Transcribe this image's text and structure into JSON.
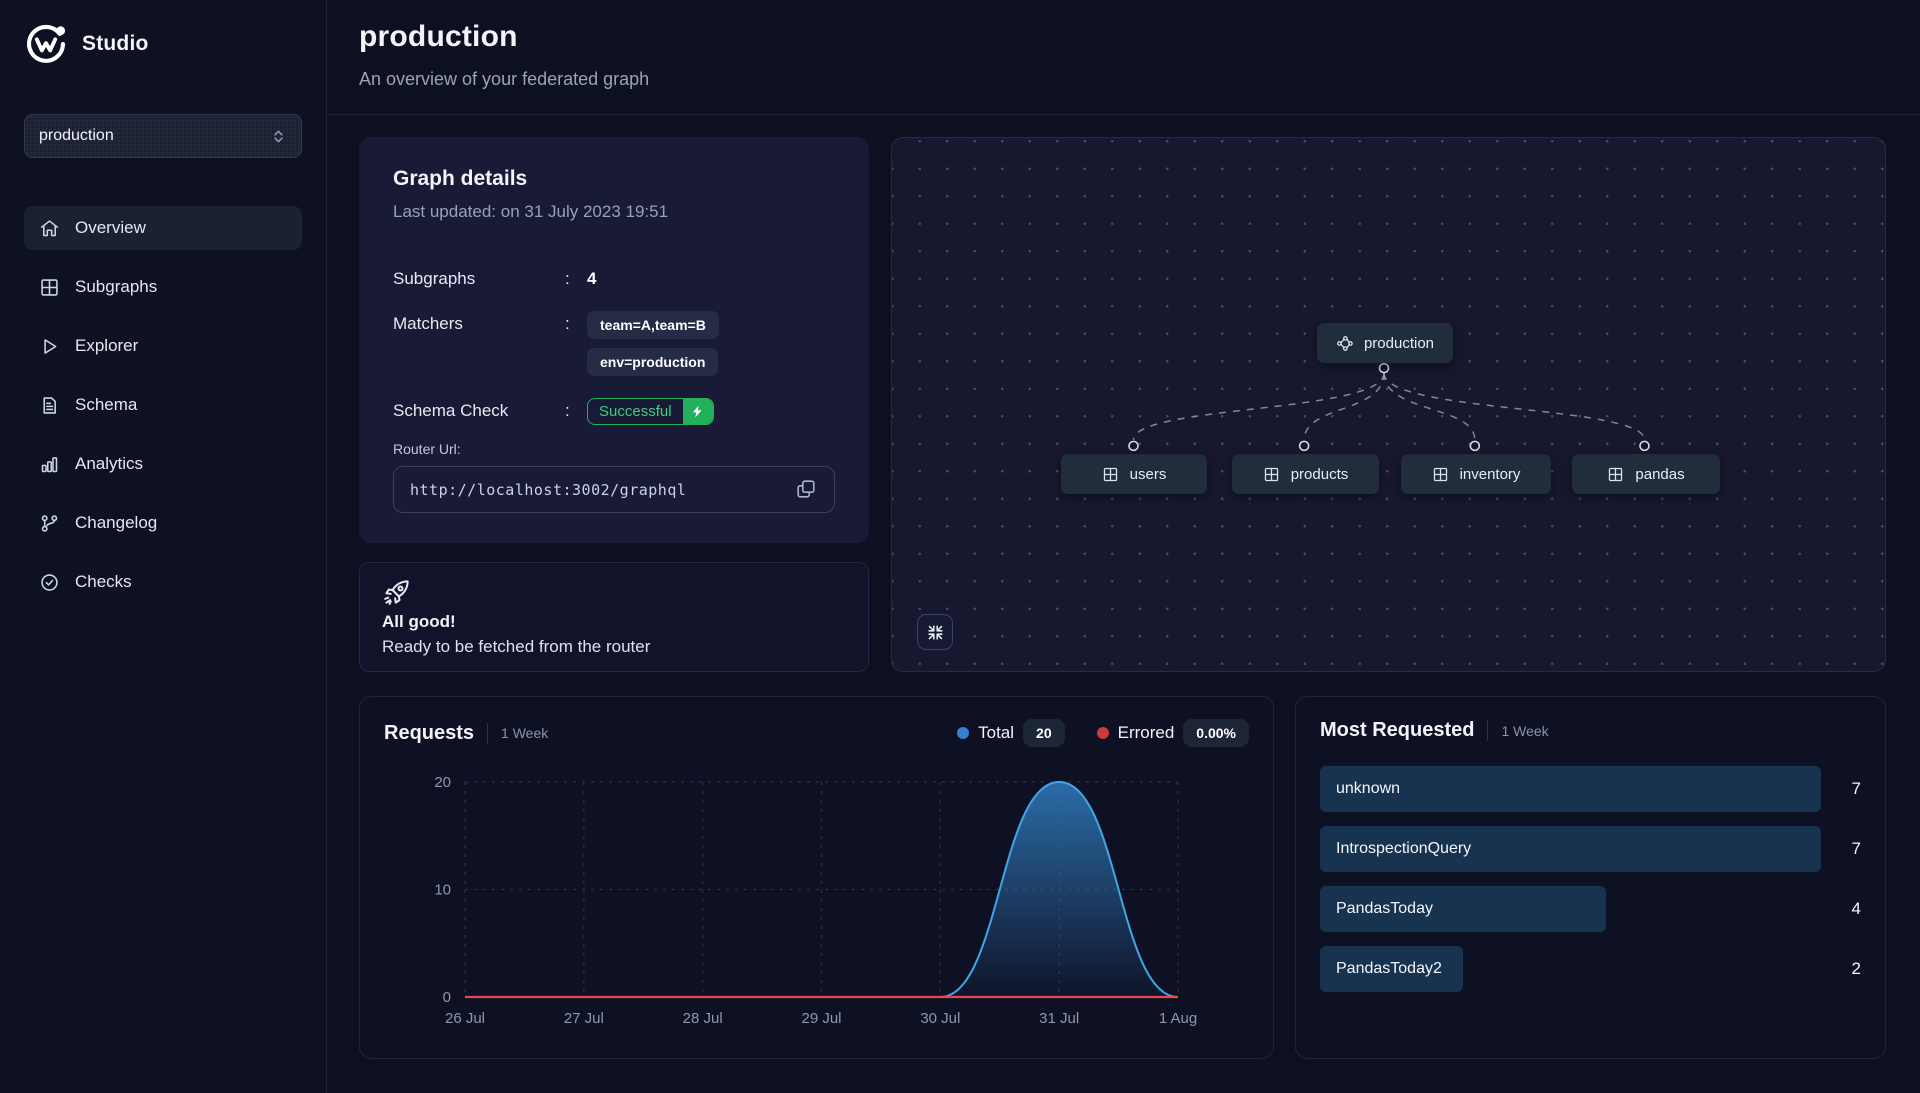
{
  "brand": {
    "name": "Studio",
    "logo_icon": "wundergraph-logo"
  },
  "sidebar": {
    "graph_select": {
      "value": "production",
      "icon": "chevron-up-down-icon"
    },
    "items": [
      {
        "label": "Overview",
        "icon": "home-icon",
        "active": true
      },
      {
        "label": "Subgraphs",
        "icon": "grid-icon",
        "active": false
      },
      {
        "label": "Explorer",
        "icon": "play-icon",
        "active": false
      },
      {
        "label": "Schema",
        "icon": "document-icon",
        "active": false
      },
      {
        "label": "Analytics",
        "icon": "bar-chart-icon",
        "active": false
      },
      {
        "label": "Changelog",
        "icon": "git-branch-icon",
        "active": false
      },
      {
        "label": "Checks",
        "icon": "check-circle-icon",
        "active": false
      }
    ]
  },
  "header": {
    "title": "production",
    "subtitle": "An overview of your federated graph"
  },
  "graph_details": {
    "title": "Graph details",
    "last_updated": "Last updated: on 31 July 2023 19:51",
    "fields": {
      "subgraphs_label": "Subgraphs",
      "subgraphs_value": "4",
      "matchers_label": "Matchers",
      "matchers": [
        "team=A,team=B",
        "env=production"
      ],
      "schema_check_label": "Schema Check",
      "schema_check_status": "Successful",
      "schema_check_icon": "lightning-icon"
    },
    "router_url_label": "Router Url:",
    "router_url": "http://localhost:3002/graphql",
    "copy_icon": "copy-icon"
  },
  "status_banner": {
    "icon": "rocket-icon",
    "title": "All good!",
    "subtitle": "Ready to be fetched from the router"
  },
  "graph_view": {
    "root_node": "production",
    "root_icon": "network-icon",
    "subgraph_icon": "table-cells-icon",
    "subgraph_nodes": [
      "users",
      "products",
      "inventory",
      "pandas"
    ],
    "fit_view_icon": "compress-icon"
  },
  "requests_panel": {
    "title": "Requests",
    "period": "1 Week",
    "legend": {
      "total_label": "Total",
      "total_value": "20",
      "errored_label": "Errored",
      "errored_value": "0.00%"
    }
  },
  "most_requested": {
    "title": "Most Requested",
    "period": "1 Week",
    "rows": [
      {
        "name": "unknown",
        "count": 7
      },
      {
        "name": "IntrospectionQuery",
        "count": 7
      },
      {
        "name": "PandasToday",
        "count": 4
      },
      {
        "name": "PandasToday2",
        "count": 2
      }
    ]
  },
  "chart_data": {
    "type": "area",
    "title": "Requests",
    "x": [
      "26 Jul",
      "27 Jul",
      "28 Jul",
      "29 Jul",
      "30 Jul",
      "31 Jul",
      "1 Aug"
    ],
    "series": [
      {
        "name": "Total",
        "values": [
          0,
          0,
          0,
          0,
          0,
          20,
          0
        ],
        "line_color": "#41a6e8",
        "fill_top_color": "#2e76b5",
        "legend_color": "#3580d2"
      },
      {
        "name": "Errored",
        "values": [
          0,
          0,
          0,
          0,
          0,
          0,
          0
        ],
        "line_color": "#e5484d",
        "legend_color": "#c93b3b"
      }
    ],
    "ylim": [
      0,
      20
    ],
    "yticks": [
      0,
      10,
      20
    ],
    "grid": "dashed",
    "legend_position": "top-right"
  },
  "colors": {
    "background": "#0d1020",
    "card": "#181a36",
    "node": "#212c3c",
    "success_green": "#22b05b",
    "total_blue": "#3580d2",
    "errored_red": "#c93b3b",
    "bar_fill": "#18334f"
  }
}
